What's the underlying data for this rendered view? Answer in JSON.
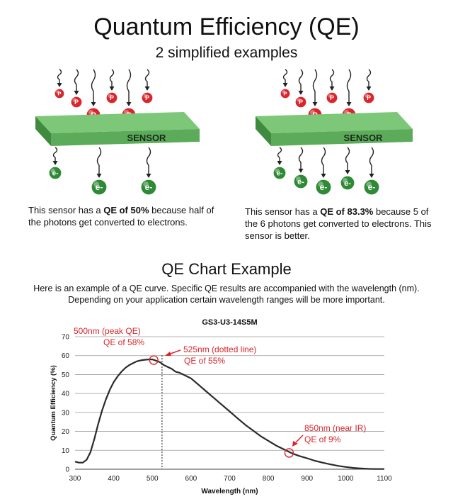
{
  "header": {
    "title": "Quantum Efficiency (QE)",
    "subtitle": "2 simplified examples"
  },
  "diagrams": {
    "photon_label": "P",
    "electron_label": "e-",
    "sensor_label": "SENSOR",
    "sensor_color": "#5cab5a",
    "photon_color": "#d9262c",
    "electron_color": "#2e8a35"
  },
  "example1": {
    "caption_pre": "This sensor has a ",
    "caption_bold": "QE of 50%",
    "caption_post": " because half of the photons get converted to electrons."
  },
  "example2": {
    "caption_pre": "This sensor has a ",
    "caption_bold": "QE of 83.3%",
    "caption_post": " because 5 of the 6 photons get converted to electrons. This sensor is better."
  },
  "section": {
    "heading": "QE Chart Example",
    "desc_line1": "Here is an example of a QE curve. Specific QE results are accompanied with the wavelength (nm).",
    "desc_line2": "Depending on your application certain wavelength ranges will be more important."
  },
  "chart_data": {
    "type": "line",
    "title": "GS3-U3-14S5M",
    "xlabel": "Wavelength (nm)",
    "ylabel": "Quantum Efficiency (%)",
    "xlim": [
      300,
      1100
    ],
    "ylim": [
      0,
      70
    ],
    "xticks": [
      300,
      400,
      500,
      600,
      700,
      800,
      900,
      1000,
      1100
    ],
    "yticks": [
      0,
      10,
      20,
      30,
      40,
      50,
      60,
      70
    ],
    "grid": "horizontal",
    "line_color": "#2a2a2a",
    "annotation_color": "#d9262c",
    "x": [
      300,
      310,
      320,
      330,
      340,
      350,
      360,
      370,
      380,
      390,
      400,
      410,
      420,
      430,
      440,
      450,
      460,
      470,
      480,
      490,
      500,
      510,
      520,
      530,
      540,
      550,
      560,
      570,
      580,
      590,
      600,
      620,
      640,
      660,
      680,
      700,
      720,
      740,
      760,
      780,
      800,
      820,
      840,
      860,
      880,
      900,
      920,
      940,
      960,
      980,
      1000,
      1020,
      1040,
      1060,
      1080,
      1100
    ],
    "y": [
      4,
      3.5,
      3.5,
      5,
      9,
      16,
      24,
      31,
      37,
      42,
      46,
      49,
      51.5,
      53.5,
      55,
      56,
      57,
      57.5,
      57.8,
      58,
      58,
      57.3,
      56.5,
      55,
      54,
      53,
      51.5,
      51,
      50,
      49,
      48,
      44.5,
      41,
      37.5,
      34,
      30.5,
      27,
      23.5,
      20.5,
      17.5,
      15,
      12.5,
      10.5,
      8.5,
      7,
      5.8,
      4.5,
      3.5,
      2.6,
      1.8,
      1.2,
      0.7,
      0.4,
      0.2,
      0.1,
      0.1
    ],
    "vline": {
      "x": 525,
      "style": "dotted"
    },
    "annotations": [
      {
        "line1": "500nm (peak QE)",
        "line2": "QE of 58%",
        "x": 500,
        "y": 58
      },
      {
        "line1": "525nm (dotted line)",
        "line2": "QE of 55%",
        "x": 525,
        "y": 55
      },
      {
        "line1": "850nm (near IR)",
        "line2": "QE of 9%",
        "x": 850,
        "y": 9
      }
    ]
  }
}
